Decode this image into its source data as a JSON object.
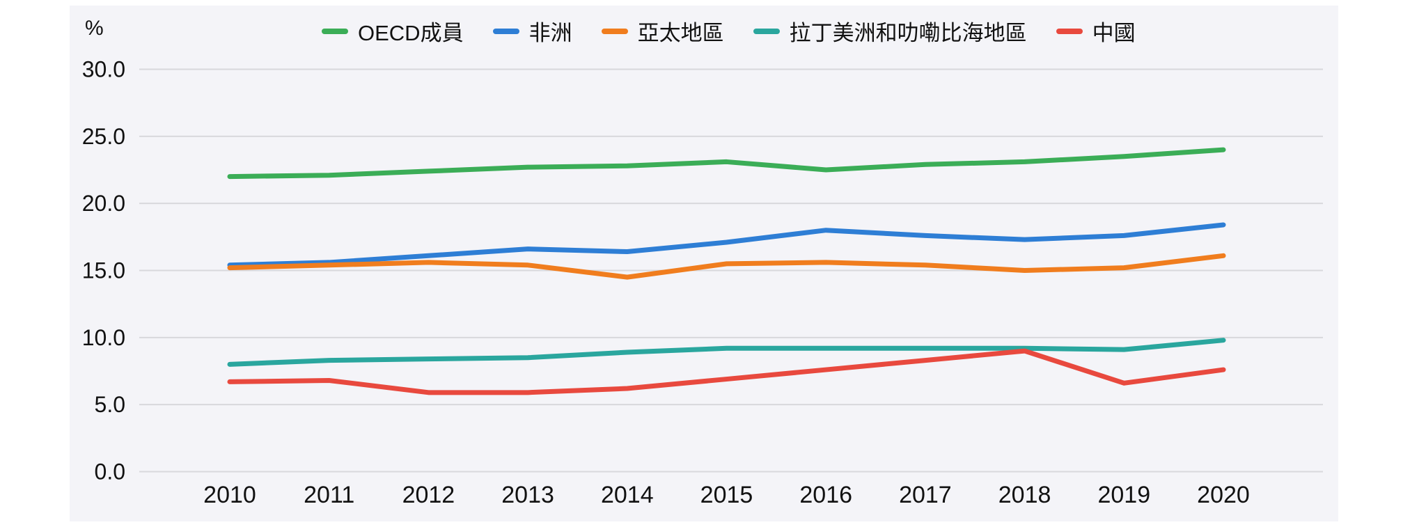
{
  "chart_data": {
    "type": "line",
    "title": "",
    "unit_label": "%",
    "x_labels": [
      "2010",
      "2011",
      "2012",
      "2013",
      "2014",
      "2015",
      "2016",
      "2017",
      "2018",
      "2019",
      "2020"
    ],
    "yticks": [
      30,
      25,
      20,
      15,
      10,
      5,
      0
    ],
    "ylim": [
      0,
      30
    ],
    "ytick_format": "one-decimal",
    "grid": true,
    "legend_position": "top",
    "series": [
      {
        "name": "OECD成員",
        "color": "#3BAD57",
        "values": [
          22.0,
          22.1,
          22.4,
          22.7,
          22.8,
          23.1,
          22.5,
          22.9,
          23.1,
          23.5,
          24.0
        ]
      },
      {
        "name": "非洲",
        "color": "#2E7ED5",
        "values": [
          15.4,
          15.6,
          16.1,
          16.6,
          16.4,
          17.1,
          18.0,
          17.6,
          17.3,
          17.6,
          18.4
        ]
      },
      {
        "name": "亞太地區",
        "color": "#F07D1E",
        "values": [
          15.2,
          15.4,
          15.6,
          15.4,
          14.5,
          15.5,
          15.6,
          15.4,
          15.0,
          15.2,
          16.1
        ]
      },
      {
        "name": "拉丁美洲和叻嘞比海地區",
        "color": "#2AA69E",
        "values": [
          8.0,
          8.3,
          8.4,
          8.5,
          8.9,
          9.2,
          9.2,
          9.2,
          9.2,
          9.1,
          9.8
        ]
      },
      {
        "name": "中國",
        "color": "#E8493E",
        "values": [
          6.7,
          6.8,
          5.9,
          5.9,
          6.2,
          6.9,
          7.6,
          8.3,
          9.0,
          6.6,
          7.6
        ]
      }
    ]
  },
  "colors": {
    "page_bg": "#FFFFFF",
    "panel_bg": "#F4F4F8",
    "grid": "#D8D8DC",
    "text": "#111111"
  }
}
